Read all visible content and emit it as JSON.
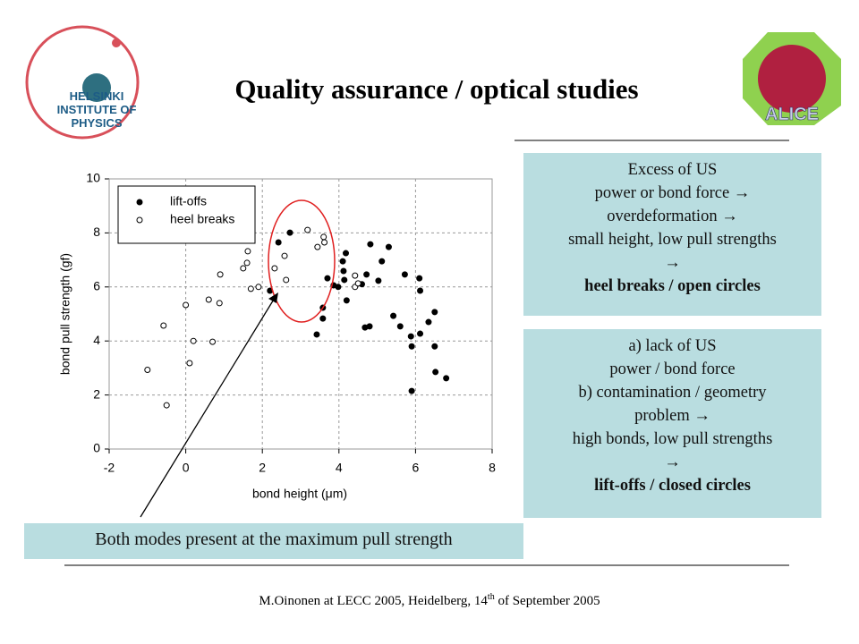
{
  "header": {
    "title": "Quality assurance / optical studies",
    "logo_left": [
      "HELSINKI",
      "INSTITUTE OF",
      "PHYSICS"
    ],
    "logo_right": "ALICE"
  },
  "chart_data": {
    "type": "scatter",
    "xlabel": "bond height (μm)",
    "ylabel": "bond pull strength (gf)",
    "xlim": [
      -2,
      8
    ],
    "xticks": [
      -2,
      0,
      2,
      4,
      6,
      8
    ],
    "ylim": [
      0,
      10
    ],
    "yticks": [
      0,
      2,
      4,
      6,
      8,
      10
    ],
    "grid": true,
    "legend": "upper-left",
    "series": [
      {
        "name": "lift-offs",
        "color": "#000000",
        "filled": true,
        "x": [
          2.2,
          2.42,
          2.72,
          3.42,
          3.58,
          3.58,
          3.7,
          3.86,
          3.98,
          4.1,
          4.12,
          4.14,
          4.2,
          4.18,
          4.6,
          4.68,
          4.72,
          4.8,
          4.82,
          5.03,
          5.12,
          5.3,
          5.42,
          5.6,
          5.72,
          5.88,
          5.9,
          5.9,
          6.1,
          6.12,
          6.12,
          6.34,
          6.5,
          6.5,
          6.52,
          6.8
        ],
        "values": [
          5.86,
          7.65,
          8.01,
          4.24,
          5.23,
          4.83,
          6.32,
          6.06,
          6.0,
          6.95,
          6.59,
          6.26,
          5.5,
          7.25,
          6.1,
          4.5,
          6.46,
          4.54,
          7.58,
          6.23,
          6.95,
          7.48,
          4.93,
          4.54,
          6.46,
          4.17,
          3.8,
          2.15,
          6.32,
          5.86,
          4.27,
          4.7,
          5.07,
          3.8,
          2.85,
          2.62
        ]
      },
      {
        "name": "heel breaks",
        "color": "#000000",
        "filled": false,
        "x": [
          -1.0,
          -0.58,
          -0.5,
          0.0,
          0.1,
          0.2,
          0.6,
          0.7,
          0.88,
          0.9,
          1.5,
          1.6,
          1.62,
          1.7,
          1.9,
          2.32,
          2.58,
          2.62,
          3.18,
          3.44,
          3.6,
          3.62,
          4.42,
          4.42,
          4.5
        ],
        "values": [
          2.93,
          4.57,
          1.62,
          5.33,
          3.18,
          4.0,
          5.53,
          3.97,
          5.4,
          6.46,
          6.69,
          6.89,
          7.32,
          5.93,
          6.0,
          6.69,
          7.15,
          6.26,
          8.11,
          7.48,
          7.85,
          7.65,
          6.42,
          6.0,
          6.13
        ]
      }
    ]
  },
  "callout": "Both modes present at the maximum pull strength",
  "box_heel": {
    "lines": [
      "Excess of US",
      "power or bond force →",
      "overdeformation →",
      "small height, low pull strengths",
      "→"
    ],
    "bold": "heel breaks / open circles"
  },
  "box_lift": {
    "lines": [
      "a) lack of US",
      "power / bond force",
      "b) contamination / geometry",
      "problem →",
      "high bonds, low pull strengths",
      "→"
    ],
    "bold": "lift-offs / closed circles"
  },
  "footer": {
    "before": "M.Oinonen at LECC 2005, Heidelberg, 14",
    "sup": "th",
    "after": " of September 2005"
  }
}
